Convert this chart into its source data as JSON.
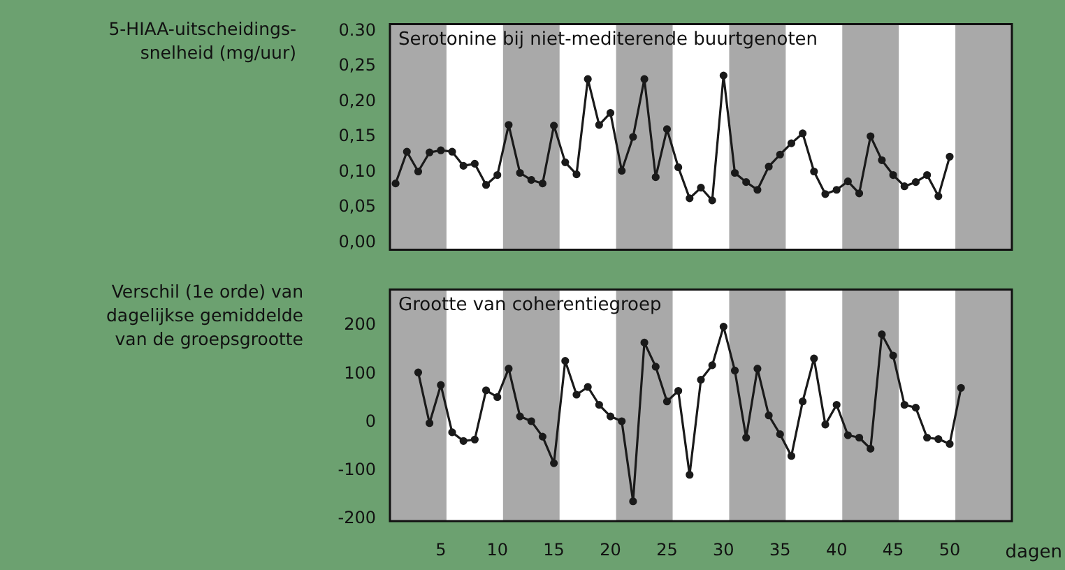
{
  "chart_data": [
    {
      "type": "line",
      "title": "Serotonine bij niet-mediterende buurtgenoten",
      "ylabel": "5-HIAA-uitscheidings-snelheid (mg/uur)",
      "x": [
        1,
        2,
        3,
        4,
        5,
        6,
        7,
        8,
        9,
        10,
        11,
        12,
        13,
        14,
        15,
        16,
        17,
        18,
        19,
        20,
        21,
        22,
        23,
        24,
        25,
        26,
        27,
        28,
        29,
        30,
        31,
        32,
        33,
        34,
        35,
        36,
        37,
        38,
        39,
        40,
        41,
        42,
        43,
        44,
        45,
        46,
        47,
        48,
        49,
        50
      ],
      "series": [
        {
          "color": "#1a1a1a",
          "values": [
            0.084,
            0.129,
            0.101,
            0.128,
            0.131,
            0.129,
            0.109,
            0.112,
            0.082,
            0.096,
            0.167,
            0.099,
            0.089,
            0.084,
            0.166,
            0.114,
            0.097,
            0.232,
            0.167,
            0.184,
            0.102,
            0.15,
            0.232,
            0.093,
            0.161,
            0.107,
            0.063,
            0.078,
            0.06,
            0.237,
            0.099,
            0.086,
            0.075,
            0.108,
            0.125,
            0.141,
            0.155,
            0.101,
            0.069,
            0.075,
            0.087,
            0.07,
            0.151,
            0.117,
            0.096,
            0.08,
            0.086,
            0.096,
            0.066,
            0.122
          ]
        }
      ],
      "xlim": [
        0.5,
        55.5
      ],
      "ylim": [
        -0.01,
        0.31
      ],
      "yticks": [
        {
          "value": 0,
          "label": "0,00"
        },
        {
          "value": 0.05,
          "label": "0,05"
        },
        {
          "value": 0.1,
          "label": "0,10"
        },
        {
          "value": 0.15,
          "label": "0,15"
        },
        {
          "value": 0.2,
          "label": "0,20"
        },
        {
          "value": 0.25,
          "label": "0,25"
        },
        {
          "value": 0.3,
          "label": "0.30"
        }
      ],
      "tick_labels": "y",
      "grid": false,
      "legend": false,
      "marker": "circle",
      "line_style": "solid",
      "bands": [
        {
          "axis": "x",
          "from": 0.5,
          "to": 5.5,
          "color": "#a9a9a9"
        },
        {
          "axis": "x",
          "from": 10.5,
          "to": 15.5,
          "color": "#a9a9a9"
        },
        {
          "axis": "x",
          "from": 20.5,
          "to": 25.5,
          "color": "#a9a9a9"
        },
        {
          "axis": "x",
          "from": 30.5,
          "to": 35.5,
          "color": "#a9a9a9"
        },
        {
          "axis": "x",
          "from": 40.5,
          "to": 45.5,
          "color": "#a9a9a9"
        },
        {
          "axis": "x",
          "from": 50.5,
          "to": 55.5,
          "color": "#a9a9a9"
        }
      ]
    },
    {
      "type": "line",
      "title": "Grootte van coherentiegroep",
      "ylabel": "Verschil (1e orde) van dagelijkse gemiddelde van de groepsgrootte",
      "xlabel": "dagen",
      "x": [
        3,
        4,
        5,
        6,
        7,
        8,
        9,
        10,
        11,
        12,
        13,
        14,
        15,
        16,
        17,
        18,
        19,
        20,
        21,
        22,
        23,
        24,
        25,
        26,
        27,
        28,
        29,
        30,
        31,
        32,
        33,
        34,
        35,
        36,
        37,
        38,
        39,
        40,
        41,
        42,
        43,
        44,
        45,
        46,
        47,
        48,
        49,
        50,
        51
      ],
      "series": [
        {
          "color": "#1a1a1a",
          "values": [
            103,
            -2,
            77,
            -21,
            -39,
            -36,
            66,
            52,
            111,
            12,
            2,
            -30,
            -85,
            127,
            57,
            73,
            36,
            12,
            2,
            -164,
            165,
            115,
            43,
            65,
            -109,
            88,
            118,
            198,
            107,
            -32,
            111,
            14,
            -25,
            -70,
            43,
            132,
            -5,
            36,
            -27,
            -32,
            -55,
            182,
            138,
            36,
            30,
            -32,
            -35,
            -45,
            71
          ]
        }
      ],
      "xlim": [
        0.5,
        55.5
      ],
      "ylim": [
        -205,
        275
      ],
      "xticks": [
        5,
        10,
        15,
        20,
        25,
        30,
        35,
        40,
        45,
        50
      ],
      "yticks": [
        -200,
        -100,
        0,
        100,
        200
      ],
      "grid": false,
      "legend": false,
      "marker": "circle",
      "line_style": "solid",
      "bands": [
        {
          "axis": "x",
          "from": 0.5,
          "to": 5.5,
          "color": "#a9a9a9"
        },
        {
          "axis": "x",
          "from": 10.5,
          "to": 15.5,
          "color": "#a9a9a9"
        },
        {
          "axis": "x",
          "from": 20.5,
          "to": 25.5,
          "color": "#a9a9a9"
        },
        {
          "axis": "x",
          "from": 30.5,
          "to": 35.5,
          "color": "#a9a9a9"
        },
        {
          "axis": "x",
          "from": 40.5,
          "to": 45.5,
          "color": "#a9a9a9"
        },
        {
          "axis": "x",
          "from": 50.5,
          "to": 55.5,
          "color": "#a9a9a9"
        }
      ]
    }
  ]
}
